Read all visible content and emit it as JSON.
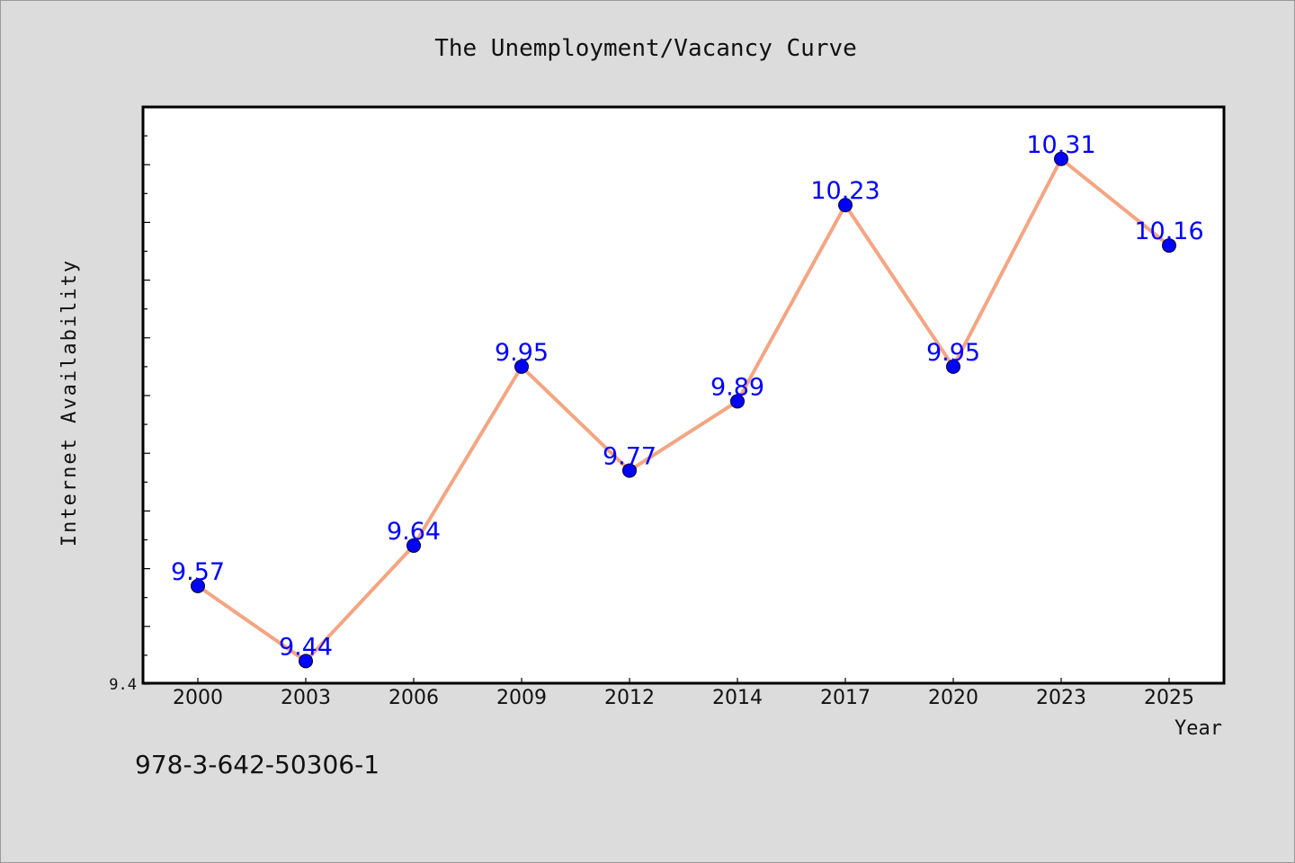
{
  "footer": {
    "code": "978-3-642-50306-1"
  },
  "colors": {
    "background": "#dcdcdc",
    "plot_background": "#ffffff",
    "line": "#f4a582",
    "marker": "#0000ff",
    "data_label": "#0000ff",
    "axis": "#000000"
  },
  "chart_data": {
    "type": "line",
    "title": "The Unemployment/Vacancy Curve",
    "xlabel": "Year",
    "ylabel": "Internet Availability",
    "categories": [
      "2000",
      "2003",
      "2006",
      "2009",
      "2012",
      "2014",
      "2017",
      "2020",
      "2023",
      "2025"
    ],
    "series": [
      {
        "values": [
          9.57,
          9.44,
          9.64,
          9.95,
          9.77,
          9.89,
          10.23,
          9.95,
          10.31,
          10.16
        ]
      }
    ],
    "data_labels": [
      "9.57",
      "9.44",
      "9.64",
      "9.95",
      "9.77",
      "9.89",
      "10.23",
      "9.95",
      "10.31",
      "10.16"
    ],
    "y_tick_labels": [
      "9.4"
    ],
    "ylim": [
      9.4,
      10.4
    ],
    "grid": false,
    "legend": "none"
  }
}
